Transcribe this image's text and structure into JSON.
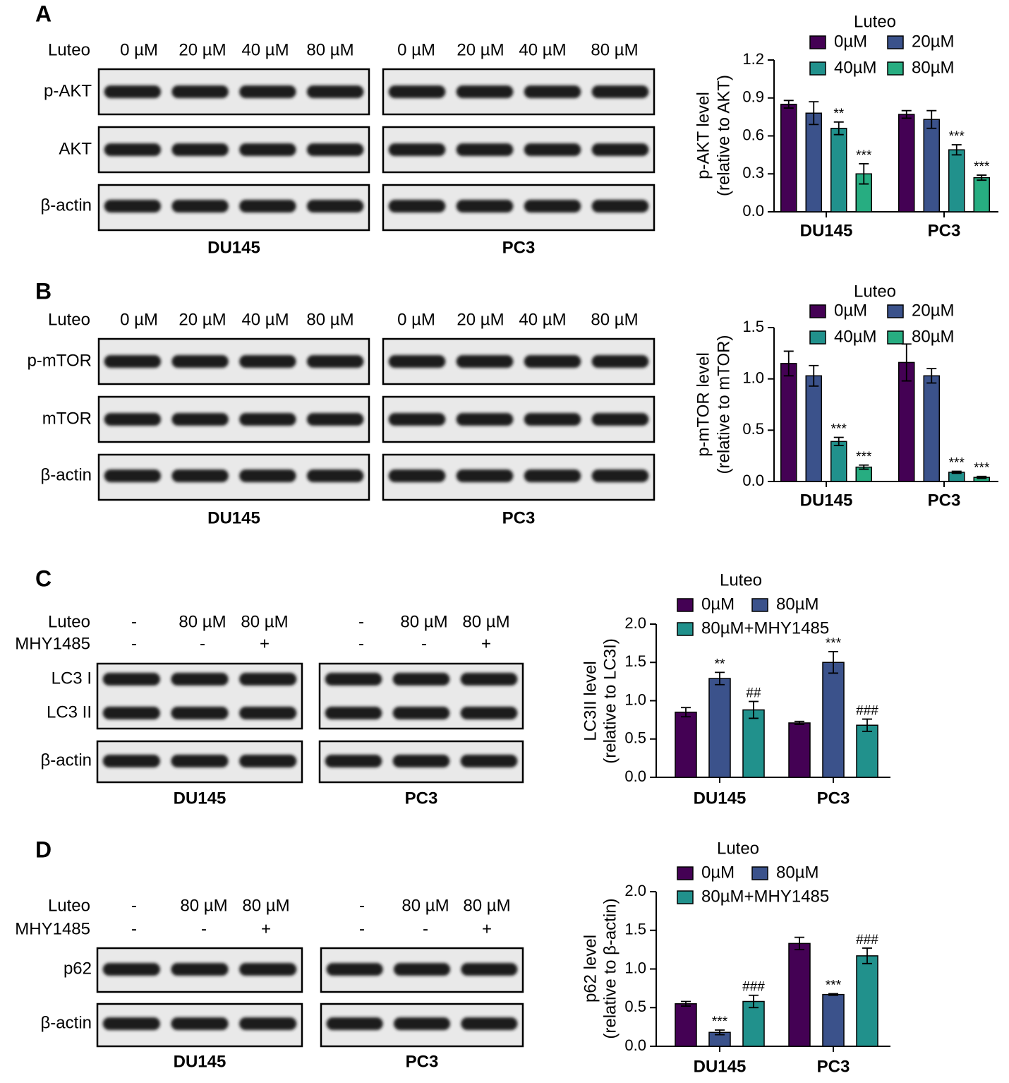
{
  "figure": {
    "panels": [
      {
        "letter": "A",
        "rows": [
          {
            "name": "Luteo",
            "lanes": [
              [
                "0 µM",
                "20 µM",
                "40 µM",
                "80 µM"
              ],
              [
                "0 µM",
                "20 µM",
                "40 µM",
                "80 µM"
              ]
            ]
          }
        ],
        "boxes": [
          [
            "p-AKT"
          ],
          [
            "AKT"
          ],
          [
            "β-actin"
          ]
        ],
        "cells": [
          "DU145",
          "PC3"
        ]
      },
      {
        "letter": "B",
        "rows": [
          {
            "name": "Luteo",
            "lanes": [
              [
                "0 µM",
                "20 µM",
                "40 µM",
                "80 µM"
              ],
              [
                "0 µM",
                "20 µM",
                "40 µM",
                "80 µM"
              ]
            ]
          }
        ],
        "boxes": [
          [
            "p-mTOR"
          ],
          [
            "mTOR"
          ],
          [
            "β-actin"
          ]
        ],
        "cells": [
          "DU145",
          "PC3"
        ]
      },
      {
        "letter": "C",
        "rows": [
          {
            "name": "Luteo",
            "lanes": [
              [
                "-",
                "80 µM",
                "80 µM"
              ],
              [
                "-",
                "80 µM",
                "80 µM"
              ]
            ]
          },
          {
            "name": "MHY1485",
            "lanes": [
              [
                "-",
                "-",
                "+"
              ],
              [
                "-",
                "-",
                "+"
              ]
            ]
          }
        ],
        "boxes": [
          [
            "LC3 I",
            "LC3 II"
          ],
          [
            "β-actin"
          ]
        ],
        "cells": [
          "DU145",
          "PC3"
        ]
      },
      {
        "letter": "D",
        "rows": [
          {
            "name": "Luteo",
            "lanes": [
              [
                "-",
                "80 µM",
                "80 µM"
              ],
              [
                "-",
                "80 µM",
                "80 µM"
              ]
            ]
          },
          {
            "name": "MHY1485",
            "lanes": [
              [
                "-",
                "-",
                "+"
              ],
              [
                "-",
                "-",
                "+"
              ]
            ]
          }
        ],
        "boxes": [
          [
            "p62"
          ],
          [
            "β-actin"
          ]
        ],
        "cells": [
          "DU145",
          "PC3"
        ]
      }
    ]
  },
  "chart_data": [
    {
      "type": "bar",
      "ylabel": [
        "p-AKT level",
        "(relative to AKT)"
      ],
      "legend_title": "Luteo",
      "categories": [
        "DU145",
        "PC3"
      ],
      "ylim": [
        0,
        1.2
      ],
      "yticks": [
        {
          "value": 0,
          "label": "0.0"
        },
        0.3,
        0.6,
        0.9,
        1.2
      ],
      "series": [
        {
          "name": "0µM",
          "color": "#440154",
          "values": [
            0.85,
            0.77
          ],
          "errors": [
            0.03,
            0.03
          ],
          "annotations": [
            null,
            null
          ]
        },
        {
          "name": "20µM",
          "color": "#3b528b",
          "values": [
            0.78,
            0.73
          ],
          "errors": [
            0.09,
            0.07
          ],
          "annotations": [
            null,
            null
          ]
        },
        {
          "name": "40µM",
          "color": "#21918c",
          "values": [
            0.66,
            0.49
          ],
          "errors": [
            0.05,
            0.04
          ],
          "annotations": [
            "**",
            "***"
          ]
        },
        {
          "name": "80µM",
          "color": "#27ad81",
          "values": [
            0.3,
            0.27
          ],
          "errors": [
            0.08,
            0.02
          ],
          "annotations": [
            "***",
            "***"
          ]
        }
      ]
    },
    {
      "type": "bar",
      "ylabel": [
        "p-mTOR level",
        "(relative to mTOR)"
      ],
      "legend_title": "Luteo",
      "categories": [
        "DU145",
        "PC3"
      ],
      "ylim": [
        0,
        1.5
      ],
      "yticks": [
        {
          "value": 0,
          "label": "0.0"
        },
        0.5,
        {
          "value": 1,
          "label": "1.0"
        },
        1.5
      ],
      "series": [
        {
          "name": "0µM",
          "color": "#440154",
          "values": [
            1.15,
            1.16
          ],
          "errors": [
            0.12,
            0.18
          ],
          "annotations": [
            null,
            null
          ]
        },
        {
          "name": "20µM",
          "color": "#3b528b",
          "values": [
            1.03,
            1.03
          ],
          "errors": [
            0.1,
            0.07
          ],
          "annotations": [
            null,
            null
          ]
        },
        {
          "name": "40µM",
          "color": "#21918c",
          "values": [
            0.39,
            0.09
          ],
          "errors": [
            0.04,
            0.01
          ],
          "annotations": [
            "***",
            "***"
          ]
        },
        {
          "name": "80µM",
          "color": "#27ad81",
          "values": [
            0.14,
            0.04
          ],
          "errors": [
            0.02,
            0.01
          ],
          "annotations": [
            "***",
            "***"
          ]
        }
      ]
    },
    {
      "type": "bar",
      "ylabel": [
        "LC3II level",
        "(relative to LC3I)"
      ],
      "legend_title": "Luteo",
      "categories": [
        "DU145",
        "PC3"
      ],
      "ylim": [
        0,
        2
      ],
      "yticks": [
        {
          "value": 0,
          "label": "0.0"
        },
        0.5,
        {
          "value": 1,
          "label": "1.0"
        },
        1.5,
        {
          "value": 2,
          "label": "2.0"
        }
      ],
      "series": [
        {
          "name": "0µM",
          "color": "#440154",
          "values": [
            0.85,
            0.71
          ],
          "errors": [
            0.06,
            0.02
          ],
          "annotations": [
            null,
            null
          ]
        },
        {
          "name": "80µM",
          "color": "#3b528b",
          "values": [
            1.29,
            1.5
          ],
          "errors": [
            0.08,
            0.14
          ],
          "annotations": [
            "**",
            "***"
          ]
        },
        {
          "name": "80µM+MHY1485",
          "color": "#21918c",
          "values": [
            0.88,
            0.68
          ],
          "errors": [
            0.11,
            0.08
          ],
          "annotations": [
            "##",
            "###"
          ]
        }
      ]
    },
    {
      "type": "bar",
      "ylabel": [
        "p62 level",
        "(relative to β-actin)"
      ],
      "legend_title": "Luteo",
      "categories": [
        "DU145",
        "PC3"
      ],
      "ylim": [
        0,
        2
      ],
      "yticks": [
        {
          "value": 0,
          "label": "0.0"
        },
        0.5,
        {
          "value": 1,
          "label": "1.0"
        },
        1.5,
        {
          "value": 2,
          "label": "2.0"
        }
      ],
      "series": [
        {
          "name": "0µM",
          "color": "#440154",
          "values": [
            0.55,
            1.33
          ],
          "errors": [
            0.03,
            0.08
          ],
          "annotations": [
            null,
            null
          ]
        },
        {
          "name": "80µM",
          "color": "#3b528b",
          "values": [
            0.18,
            0.67
          ],
          "errors": [
            0.03,
            0.01
          ],
          "annotations": [
            "***",
            "***"
          ]
        },
        {
          "name": "80µM+MHY1485",
          "color": "#21918c",
          "values": [
            0.58,
            1.17
          ],
          "errors": [
            0.08,
            0.1
          ],
          "annotations": [
            "###",
            "###"
          ]
        }
      ]
    }
  ]
}
